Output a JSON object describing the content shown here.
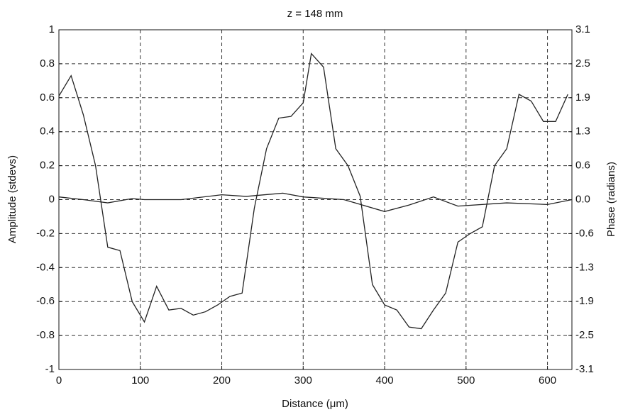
{
  "chart_data": {
    "type": "line",
    "title": "z = 148 mm",
    "x_label": "Distance (μm)",
    "y_label": "Amplitude (stdevs)",
    "y2_label": "Phase (radians)",
    "xlim": [
      0,
      630
    ],
    "xticks": [
      0,
      100,
      200,
      300,
      400,
      500,
      600
    ],
    "ylim": [
      -1,
      1
    ],
    "yticks": [
      -1,
      -0.8,
      -0.6,
      -0.4,
      -0.2,
      0,
      0.2,
      0.4,
      0.6,
      0.8,
      1
    ],
    "y2lim": [
      -3.1416,
      3.1416
    ],
    "y2ticks": [
      {
        "value": -3.1416,
        "label": "-3.1"
      },
      {
        "value": -2.5133,
        "label": "-2.5"
      },
      {
        "value": -1.885,
        "label": "-1.9"
      },
      {
        "value": -1.2566,
        "label": "-1.3"
      },
      {
        "value": -0.6283,
        "label": "-0.6"
      },
      {
        "value": 0,
        "label": "0.0"
      },
      {
        "value": 0.6283,
        "label": "0.6"
      },
      {
        "value": 1.2566,
        "label": "1.3"
      },
      {
        "value": 1.885,
        "label": "1.9"
      },
      {
        "value": 2.5133,
        "label": "2.5"
      },
      {
        "value": 3.1416,
        "label": "3.1"
      }
    ],
    "grid": true,
    "series": [
      {
        "color": "#222222",
        "x": [
          0,
          15,
          30,
          45,
          60,
          75,
          90,
          105,
          120,
          135,
          150,
          165,
          180,
          195,
          210,
          225,
          240,
          255,
          270,
          285,
          300,
          310,
          325,
          340,
          355,
          370,
          385,
          400,
          415,
          430,
          445,
          460,
          475,
          490,
          505,
          520,
          535,
          550,
          565,
          580,
          595,
          610,
          625
        ],
        "values": [
          0.61,
          0.73,
          0.5,
          0.2,
          -0.28,
          -0.3,
          -0.6,
          -0.72,
          -0.51,
          -0.65,
          -0.64,
          -0.68,
          -0.66,
          -0.62,
          -0.57,
          -0.55,
          -0.05,
          0.3,
          0.48,
          0.49,
          0.57,
          0.86,
          0.78,
          0.3,
          0.2,
          0.02,
          -0.5,
          -0.62,
          -0.65,
          -0.75,
          -0.76,
          -0.65,
          -0.55,
          -0.25,
          -0.2,
          -0.16,
          0.2,
          0.3,
          0.62,
          0.58,
          0.46,
          0.46,
          0.62
        ]
      },
      {
        "color": "#222222",
        "axis": "y2",
        "x": [
          0,
          30,
          60,
          90,
          105,
          150,
          200,
          230,
          275,
          300,
          350,
          400,
          430,
          460,
          490,
          550,
          600,
          630
        ],
        "values": [
          0.05,
          0.0,
          -0.06,
          0.02,
          0.0,
          0.0,
          0.09,
          0.06,
          0.12,
          0.05,
          0.0,
          -0.22,
          -0.1,
          0.05,
          -0.12,
          -0.06,
          -0.09,
          0.0
        ]
      }
    ]
  }
}
